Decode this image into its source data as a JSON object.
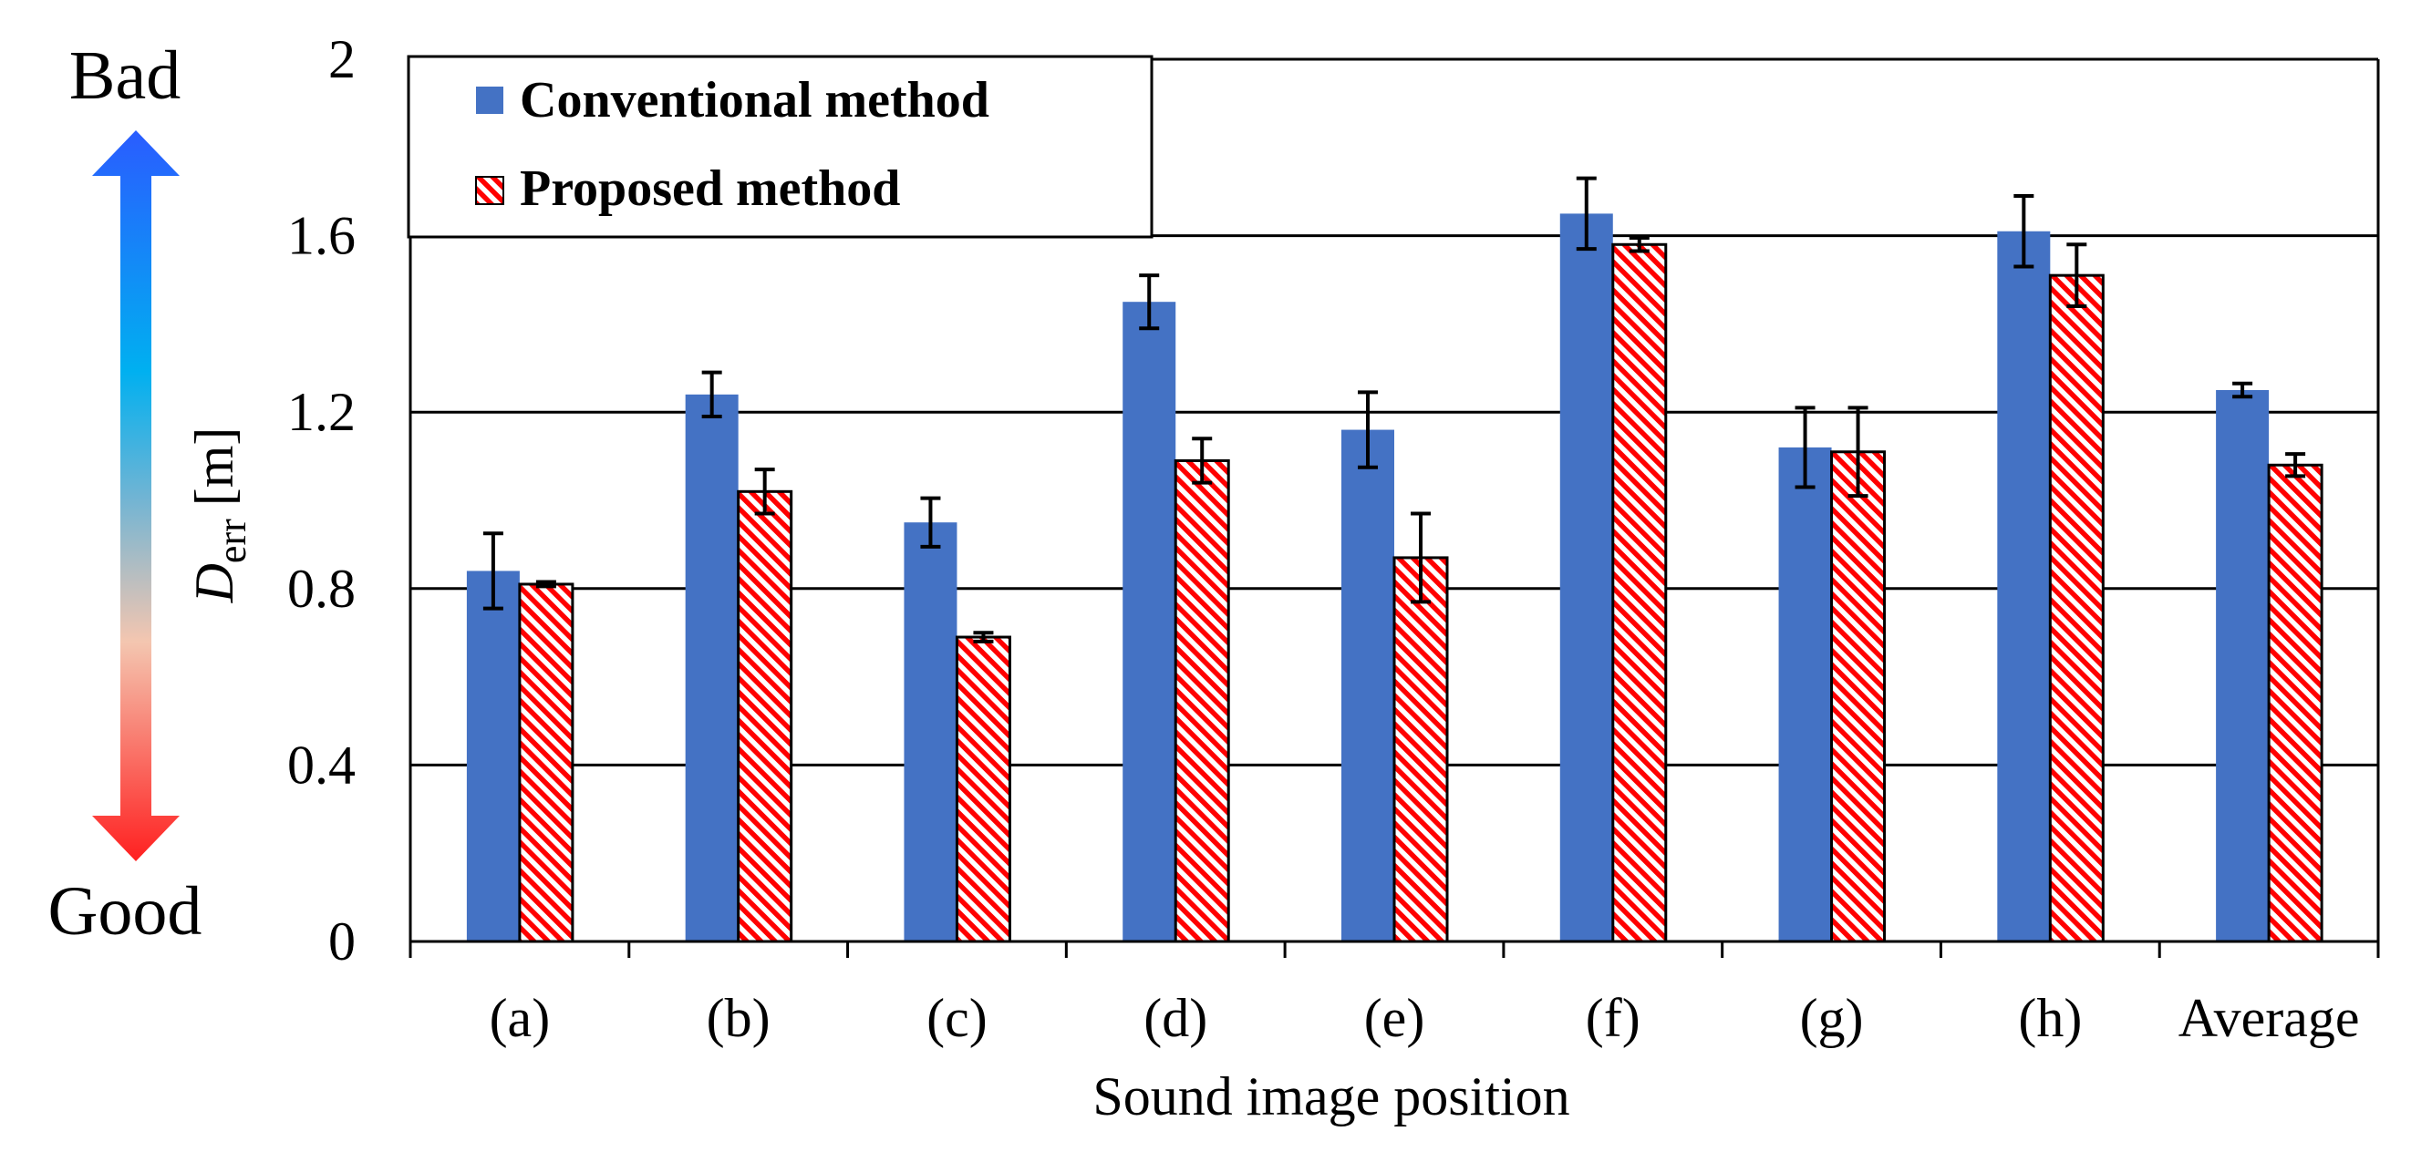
{
  "chart_data": {
    "type": "bar",
    "title": "",
    "xlabel": "Sound image position",
    "ylabel": {
      "symbol": "D",
      "subscript": "err",
      "unit": "[m]"
    },
    "ylim": [
      0,
      2
    ],
    "yticks": [
      0,
      0.4,
      0.8,
      1.2,
      1.6,
      2
    ],
    "ytick_labels": [
      "0",
      "0.4",
      "0.8",
      "1.2",
      "1.6",
      "2"
    ],
    "grid": true,
    "legend_position": "top-left",
    "categories": [
      "(a)",
      "(b)",
      "(c)",
      "(d)",
      "(e)",
      "(f)",
      "(g)",
      "(h)",
      "Average"
    ],
    "series": [
      {
        "name": "Conventional method",
        "pattern": "solid",
        "color": "#4472C4",
        "values": [
          0.84,
          1.24,
          0.95,
          1.45,
          1.16,
          1.65,
          1.12,
          1.61,
          1.25
        ],
        "errors": [
          0.085,
          0.05,
          0.055,
          0.06,
          0.085,
          0.08,
          0.09,
          0.08,
          0.015
        ]
      },
      {
        "name": "Proposed method",
        "pattern": "red-hatch",
        "color": "#FF0000",
        "values": [
          0.81,
          1.02,
          0.69,
          1.09,
          0.87,
          1.58,
          1.11,
          1.51,
          1.08
        ],
        "errors": [
          0.005,
          0.05,
          0.01,
          0.05,
          0.1,
          0.015,
          0.1,
          0.07,
          0.025
        ]
      }
    ]
  },
  "side_indicator": {
    "top_label": "Bad",
    "bottom_label": "Good",
    "top_color": "#1F5FFF",
    "bottom_color": "#FF1A1A"
  }
}
